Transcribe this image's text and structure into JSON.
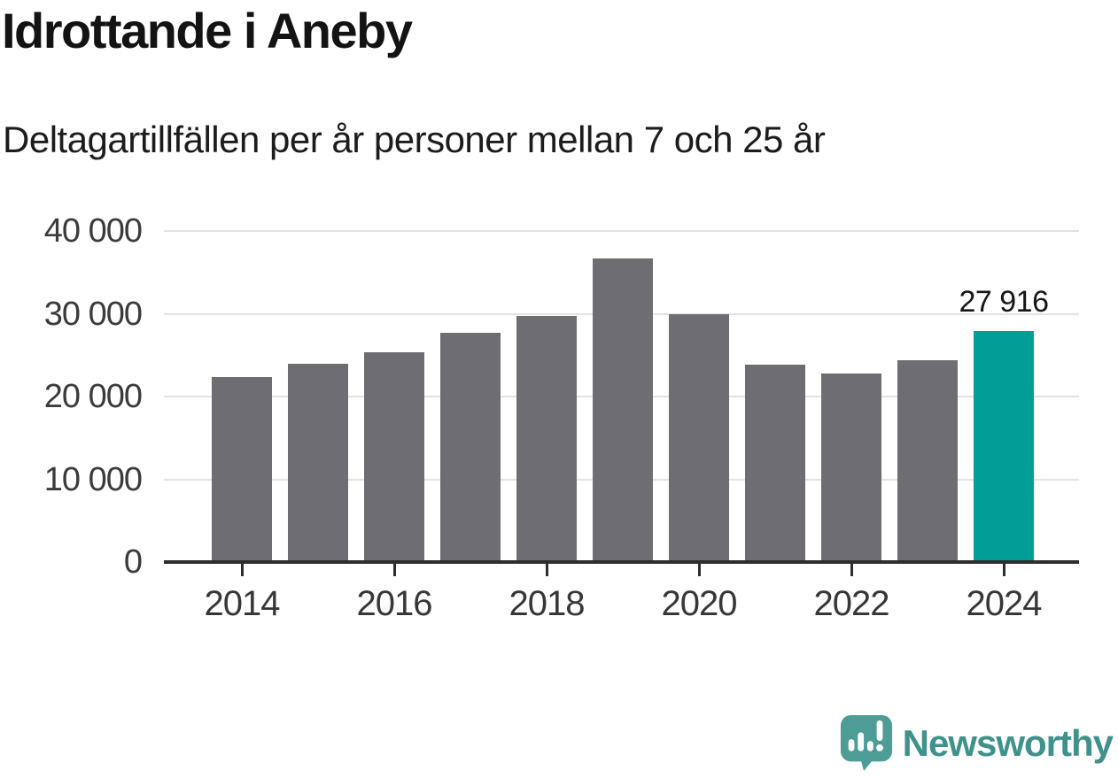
{
  "header": {
    "title": "Idrottande i Aneby",
    "subtitle": "Deltagartillfällen per år personer mellan 7 och 25 år"
  },
  "chart_data": {
    "type": "bar",
    "title": "Idrottande i Aneby",
    "subtitle": "Deltagartillfällen per år personer mellan 7 och 25 år",
    "categories": [
      "2014",
      "2015",
      "2016",
      "2017",
      "2018",
      "2019",
      "2020",
      "2021",
      "2022",
      "2023",
      "2024"
    ],
    "values": [
      22300,
      24000,
      25300,
      27700,
      29700,
      36700,
      29900,
      23800,
      22800,
      24400,
      27916
    ],
    "highlight": {
      "category": "2024",
      "value": 27916,
      "label": "27 916",
      "color": "#009e96"
    },
    "bar_color": "#6e6d72",
    "ylim": [
      0,
      40000
    ],
    "yticks": [
      0,
      10000,
      20000,
      30000,
      40000
    ],
    "ytick_labels": [
      "0",
      "10 000",
      "20 000",
      "30 000",
      "40 000"
    ],
    "xtick_labels": [
      "2014",
      "2016",
      "2018",
      "2020",
      "2022",
      "2024"
    ],
    "grid": true,
    "gridline_color": "#e3e3e3",
    "axis_color": "#2e2e2e",
    "legend": "none"
  },
  "footer": {
    "brand": "Newsworthy",
    "brand_color": "#3f918c",
    "logo_icon": "newsworthy-speech-bubble-bar-chart-icon"
  }
}
